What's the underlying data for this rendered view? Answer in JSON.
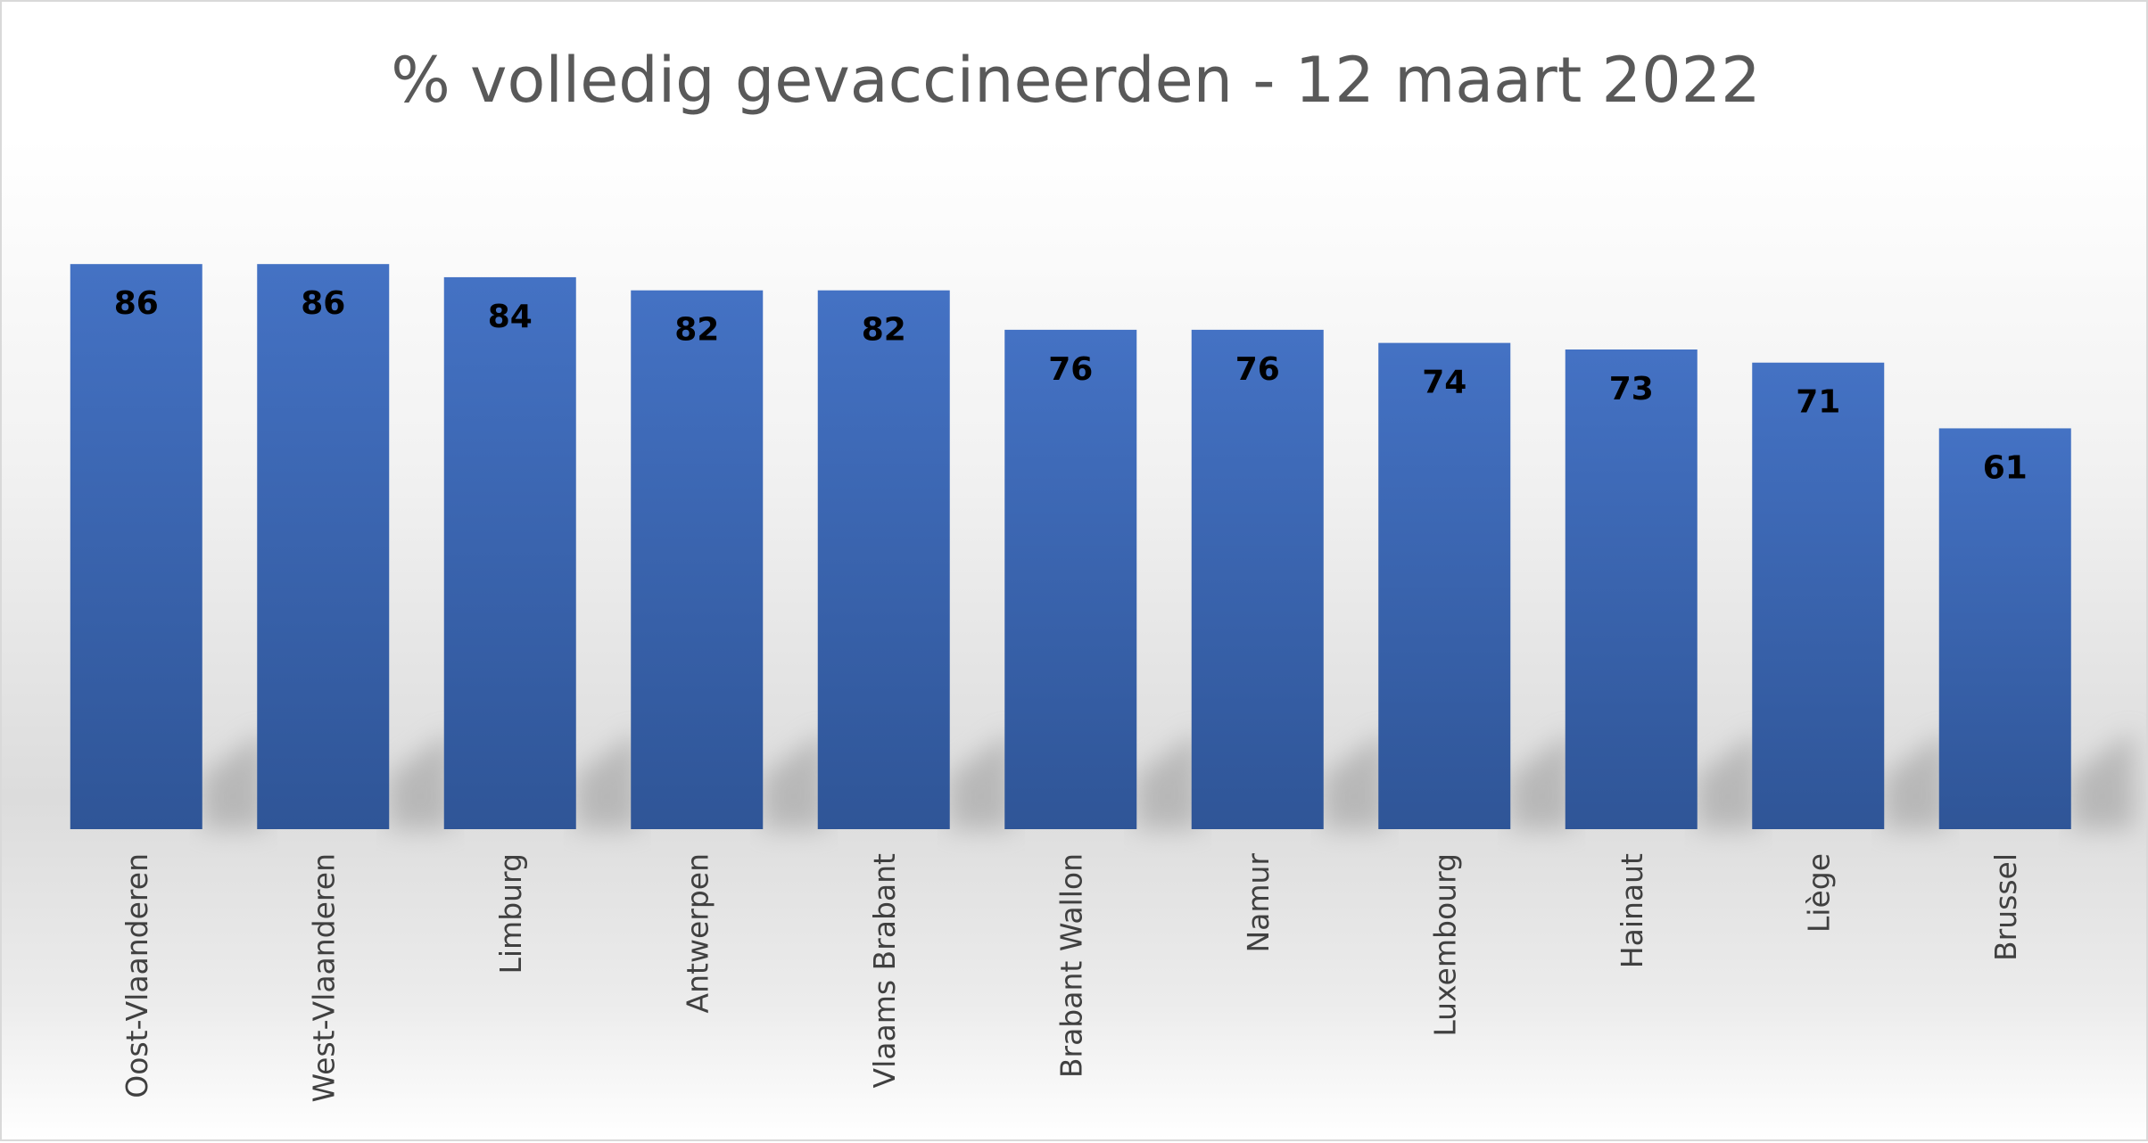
{
  "chart_data": {
    "type": "bar",
    "title": "% volledig gevaccineerden - 12 maart 2022",
    "categories": [
      "Oost-Vlaanderen",
      "West-Vlaanderen",
      "Limburg",
      "Antwerpen",
      "Vlaams Brabant",
      "Brabant Wallon",
      "Namur",
      "Luxembourg",
      "Hainaut",
      "Liège",
      "Brussel"
    ],
    "values": [
      86,
      86,
      84,
      82,
      82,
      76,
      76,
      74,
      73,
      71,
      61
    ],
    "ylim": [
      0,
      100
    ],
    "data_labels": true,
    "grid": false,
    "legend": "none",
    "axis_labels_rotated": true
  },
  "colors": {
    "bar_top": "#4472c4",
    "bar_bottom": "#2f5597",
    "title": "#595959",
    "category_text": "#404040",
    "value_text": "#000000"
  }
}
